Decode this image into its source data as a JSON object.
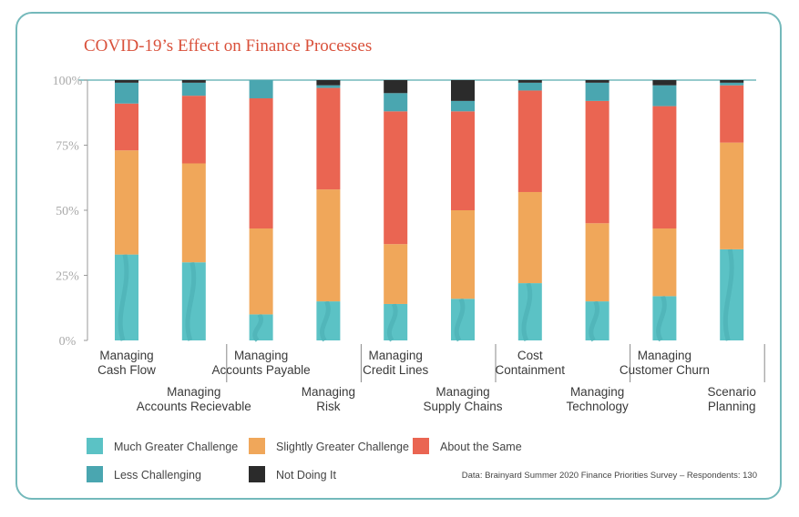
{
  "chart_data": {
    "type": "bar",
    "stacked": true,
    "title": "COVID-19’s Effect on Finance Processes",
    "ylim": [
      0,
      100
    ],
    "yticks": [
      "0%",
      "25%",
      "50%",
      "75%",
      "100%"
    ],
    "categories": [
      [
        "Managing",
        "Cash Flow"
      ],
      [
        "Managing",
        "Accounts Recievable"
      ],
      [
        "Managing",
        "Accounts Payable"
      ],
      [
        "Managing",
        "Risk"
      ],
      [
        "Managing",
        "Credit Lines"
      ],
      [
        "Managing",
        "Supply Chains"
      ],
      [
        "Cost",
        "Containment"
      ],
      [
        "Managing",
        "Technology"
      ],
      [
        "Managing",
        "Customer Churn"
      ],
      [
        "Scenario",
        "Planning"
      ]
    ],
    "series": [
      {
        "name": "Much Greater Challenge",
        "color": "#5bc2c5",
        "values": [
          33,
          30,
          10,
          15,
          14,
          16,
          22,
          15,
          17,
          35
        ]
      },
      {
        "name": "Slightly Greater Challenge",
        "color": "#f0a75a",
        "values": [
          40,
          38,
          33,
          43,
          23,
          34,
          35,
          30,
          26,
          41
        ]
      },
      {
        "name": "About the Same",
        "color": "#ea6552",
        "values": [
          18,
          26,
          50,
          39,
          51,
          38,
          39,
          47,
          47,
          22
        ]
      },
      {
        "name": "Less Challenging",
        "color": "#4aa6b0",
        "values": [
          8,
          5,
          7,
          1,
          7,
          4,
          3,
          7,
          8,
          1
        ]
      },
      {
        "name": "Not Doing It",
        "color": "#2b2b2b",
        "values": [
          1,
          1,
          0,
          2,
          5,
          8,
          1,
          1,
          2,
          1
        ]
      }
    ],
    "legend": {
      "row1": [
        "Much Greater Challenge",
        "Slightly Greater Challenge",
        "About the Same"
      ],
      "row2": [
        "Less Challenging",
        "Not Doing It"
      ]
    }
  },
  "source": "Data: Brainyard Summer 2020 Finance Priorities Survey – Respondents: 130"
}
